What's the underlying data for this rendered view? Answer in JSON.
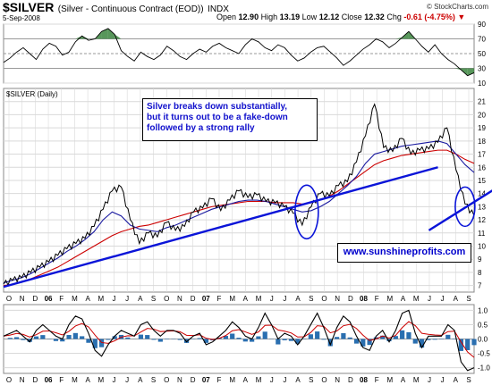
{
  "header": {
    "symbol": "$SILVER",
    "description": "(Silver - Continuous Contract (EOD))",
    "exchange": "INDX",
    "source": "© StockCharts.com",
    "date": "5-Sep-2008",
    "open_label": "Open",
    "open": "12.90",
    "high_label": "High",
    "high": "13.19",
    "low_label": "Low",
    "low": "12.12",
    "close_label": "Close",
    "close": "12.32",
    "chg_label": "Chg",
    "chg": "-0.61 (-4.75%)",
    "chg_arrow": "▼"
  },
  "annotation": {
    "line1": "Silver breaks down substantially,",
    "line2": "but it turns out to be a fake-down",
    "line3": "followed by a strong rally"
  },
  "website": "www.sunshineprofits.com",
  "colors": {
    "price": "#000000",
    "ma_short": "#1a1aa0",
    "ma_long": "#cc0000",
    "trendline": "#0a14d8",
    "rsi_fill": "#2e7d32",
    "macd_hist": "#2a6fb0",
    "grid": "#d9d9d9"
  },
  "chart_data": [
    {
      "type": "line",
      "title": "",
      "ylim": [
        10,
        90
      ],
      "y_ticks": [
        "90",
        "70",
        "50",
        "30",
        "10"
      ],
      "reference_lines": [
        70,
        50,
        30
      ],
      "values": [
        38,
        44,
        52,
        58,
        50,
        42,
        56,
        64,
        60,
        48,
        52,
        66,
        74,
        68,
        70,
        80,
        84,
        76,
        54,
        46,
        40,
        52,
        46,
        42,
        48,
        60,
        54,
        46,
        42,
        50,
        56,
        52,
        60,
        64,
        58,
        54,
        50,
        62,
        70,
        66,
        58,
        54,
        62,
        58,
        48,
        40,
        44,
        52,
        58,
        60,
        52,
        44,
        34,
        40,
        48,
        56,
        62,
        70,
        66,
        58,
        64,
        72,
        80,
        70,
        60,
        52,
        62,
        50,
        42,
        36,
        28,
        20,
        24
      ]
    },
    {
      "type": "line",
      "title": "$SILVER (Daily)",
      "ylim": [
        6.5,
        22
      ],
      "y_ticks": [
        "21",
        "20",
        "19",
        "18",
        "17",
        "16",
        "15",
        "14",
        "13",
        "12",
        "11",
        "10",
        "9",
        "8",
        "7"
      ],
      "x_labels": [
        "O",
        "N",
        "D",
        "06",
        "F",
        "M",
        "A",
        "M",
        "J",
        "J",
        "A",
        "S",
        "O",
        "N",
        "D",
        "07",
        "F",
        "M",
        "A",
        "M",
        "J",
        "J",
        "A",
        "S",
        "O",
        "N",
        "D",
        "08",
        "F",
        "M",
        "A",
        "M",
        "J",
        "J",
        "A",
        "S"
      ],
      "series": [
        {
          "role": "price",
          "values": [
            7.1,
            7.4,
            7.6,
            8.0,
            8.4,
            8.8,
            9.3,
            9.8,
            10.2,
            10.6,
            11.5,
            12.8,
            14.2,
            14.5,
            12.0,
            10.2,
            11.0,
            10.7,
            11.8,
            11.2,
            11.5,
            12.6,
            12.9,
            13.6,
            12.7,
            13.5,
            14.2,
            13.7,
            13.9,
            13.4,
            13.3,
            13.0,
            12.5,
            11.6,
            13.0,
            14.0,
            13.8,
            14.6,
            14.9,
            16.4,
            18.4,
            20.8,
            17.5,
            17.2,
            18.2,
            17.0,
            17.3,
            17.4,
            17.9,
            19.0,
            15.8,
            13.2,
            12.3
          ]
        },
        {
          "role": "ma_short",
          "values": [
            7.2,
            7.4,
            7.6,
            7.9,
            8.3,
            8.7,
            9.1,
            9.6,
            10.0,
            10.5,
            11.1,
            12.0,
            12.6,
            12.3,
            11.6,
            11.3,
            11.2,
            11.1,
            11.4,
            11.6,
            11.9,
            12.2,
            12.5,
            12.8,
            13.0,
            13.2,
            13.4,
            13.5,
            13.5,
            13.4,
            13.2,
            13.0,
            12.8,
            12.6,
            12.7,
            13.0,
            13.4,
            14.0,
            14.6,
            15.3,
            16.3,
            17.0,
            17.2,
            17.4,
            17.6,
            17.7,
            17.8,
            17.9,
            18.0,
            17.8,
            17.0,
            16.2,
            15.6
          ]
        },
        {
          "role": "ma_long",
          "values": [
            7.0,
            7.1,
            7.3,
            7.5,
            7.8,
            8.1,
            8.4,
            8.8,
            9.2,
            9.6,
            10.0,
            10.4,
            10.8,
            11.1,
            11.3,
            11.5,
            11.6,
            11.8,
            12.0,
            12.2,
            12.4,
            12.6,
            12.8,
            13.0,
            13.1,
            13.2,
            13.3,
            13.4,
            13.4,
            13.4,
            13.3,
            13.3,
            13.3,
            13.2,
            13.3,
            13.5,
            13.8,
            14.2,
            14.7,
            15.2,
            15.7,
            16.2,
            16.5,
            16.7,
            16.9,
            17.0,
            17.1,
            17.2,
            17.3,
            17.3,
            17.0,
            16.6,
            16.3
          ]
        },
        {
          "role": "trendline",
          "points": [
            [
              0,
              6.9
            ],
            [
              48,
              16.0
            ]
          ]
        },
        {
          "role": "trendline",
          "points": [
            [
              47,
              11.2
            ],
            [
              72,
              22.0
            ]
          ]
        }
      ]
    },
    {
      "type": "line",
      "title": "",
      "ylim": [
        -1.2,
        1.2
      ],
      "y_ticks": [
        "1.0",
        "0.5",
        "0.0",
        "-0.5",
        "-1.0"
      ],
      "reference_lines": [
        0
      ],
      "values": [
        0.1,
        0.2,
        0.3,
        0.1,
        -0.1,
        0.3,
        0.5,
        0.3,
        0.1,
        0.0,
        0.5,
        0.8,
        0.7,
        0.2,
        -0.4,
        -0.6,
        -0.2,
        0.1,
        0.3,
        0.2,
        0.1,
        0.5,
        0.6,
        0.3,
        0.1,
        0.3,
        0.3,
        0.2,
        -0.1,
        0.1,
        0.2,
        -0.2,
        -0.1,
        0.1,
        0.3,
        0.6,
        0.4,
        0.1,
        0.0,
        0.4,
        0.9,
        0.5,
        0.0,
        0.2,
        0.1,
        -0.2,
        0.1,
        0.5,
        0.9,
        0.4,
        -0.2,
        0.4,
        0.8,
        0.6,
        0.1,
        -0.3,
        -0.4,
        0.1,
        0.3,
        -0.1,
        0.3,
        0.9,
        1.0,
        0.2,
        -0.3,
        0.1,
        0.1,
        0.1,
        0.5,
        0.3,
        -0.8,
        -1.1,
        -1.0
      ]
    }
  ]
}
